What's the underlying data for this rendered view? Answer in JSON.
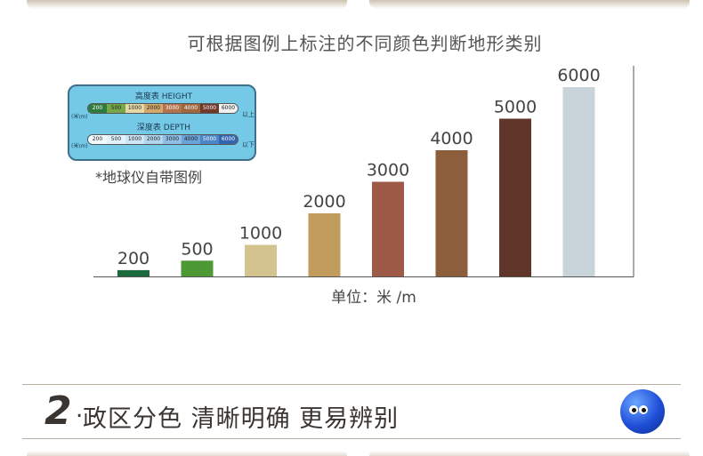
{
  "chart_data": {
    "type": "bar",
    "title": "可根据图例上标注的不同颜色判断地形类别",
    "xlabel": "",
    "ylabel": "单位：米 /m",
    "categories": [
      "200",
      "500",
      "1000",
      "2000",
      "3000",
      "4000",
      "5000",
      "6000"
    ],
    "values": [
      200,
      500,
      1000,
      2000,
      3000,
      4000,
      5000,
      6000
    ],
    "colors": [
      "#1a6a3e",
      "#4d9a35",
      "#d3c38e",
      "#c19c5c",
      "#9e5a47",
      "#8c5e3c",
      "#60352a",
      "#c9d4da"
    ],
    "grid": false
  },
  "legend_image": {
    "height_label": "高度表 HEIGHT",
    "depth_label": "深度表 DEPTH",
    "unit": "(米\\m)",
    "height_values": [
      "200",
      "500",
      "1000",
      "2000",
      "3000",
      "4000",
      "5000",
      "6000"
    ],
    "depth_values": [
      "200",
      "500",
      "1000",
      "2000",
      "3000",
      "4000",
      "5000",
      "6000"
    ],
    "above_note": "以上",
    "below_note": "以下",
    "caption": "*地球仪自带图例"
  },
  "section": {
    "number": "2",
    "dot": ".",
    "title": "政区分色  清晰明确  更易辨别",
    "icon": "globe-mascot-icon"
  }
}
